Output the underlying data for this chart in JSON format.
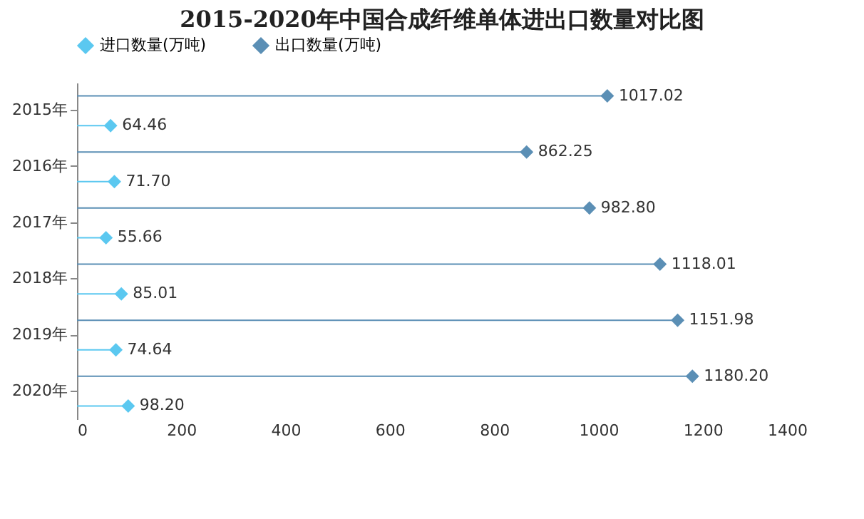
{
  "chart_data": {
    "type": "lollipop",
    "orientation": "horizontal",
    "title": "2015-2020年中国合成纤维单体进出口数量对比图",
    "categories": [
      "2015年",
      "2016年",
      "2017年",
      "2018年",
      "2019年",
      "2020年"
    ],
    "series": [
      {
        "name": "进口数量(万吨)",
        "color": "#5bc8f0",
        "values": [
          64.46,
          71.7,
          55.66,
          85.01,
          74.64,
          98.2
        ],
        "value_labels": [
          "64.46",
          "71.70",
          "55.66",
          "85.01",
          "74.64",
          "98.20"
        ]
      },
      {
        "name": "出口数量(万吨)",
        "color": "#5b8fb5",
        "values": [
          1017.02,
          862.25,
          982.8,
          1118.01,
          1151.98,
          1180.2
        ],
        "value_labels": [
          "1017.02",
          "862.25",
          "982.80",
          "1118.01",
          "1151.98",
          "1180.20"
        ]
      }
    ],
    "xlim": [
      0,
      1400
    ],
    "xticks": [
      0,
      200,
      400,
      600,
      800,
      1000,
      1200,
      1400
    ],
    "grid": false,
    "legend": "top",
    "marker": "diamond"
  }
}
